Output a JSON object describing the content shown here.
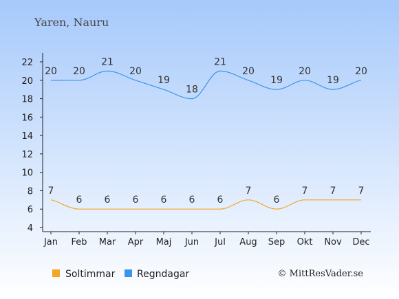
{
  "chart_data": {
    "type": "line",
    "title": "Yaren, Nauru",
    "categories": [
      "Jan",
      "Feb",
      "Mar",
      "Apr",
      "Maj",
      "Jun",
      "Jul",
      "Aug",
      "Sep",
      "Okt",
      "Nov",
      "Dec"
    ],
    "y_ticks": [
      "4",
      "6",
      "8",
      "10",
      "12",
      "14",
      "16",
      "18",
      "20",
      "22"
    ],
    "ylim": [
      4,
      22
    ],
    "grid": false,
    "legend_position": "bottom-left",
    "series": [
      {
        "name": "Soltimmar",
        "color": "#f5a623",
        "values": [
          7,
          6,
          6,
          6,
          6,
          6,
          6,
          7,
          6,
          7,
          7,
          7
        ]
      },
      {
        "name": "Regndagar",
        "color": "#3a96ea",
        "values": [
          20,
          20,
          21,
          20,
          19,
          18,
          21,
          20,
          19,
          20,
          19,
          20
        ]
      }
    ],
    "credit": "© MittResVader.se"
  }
}
